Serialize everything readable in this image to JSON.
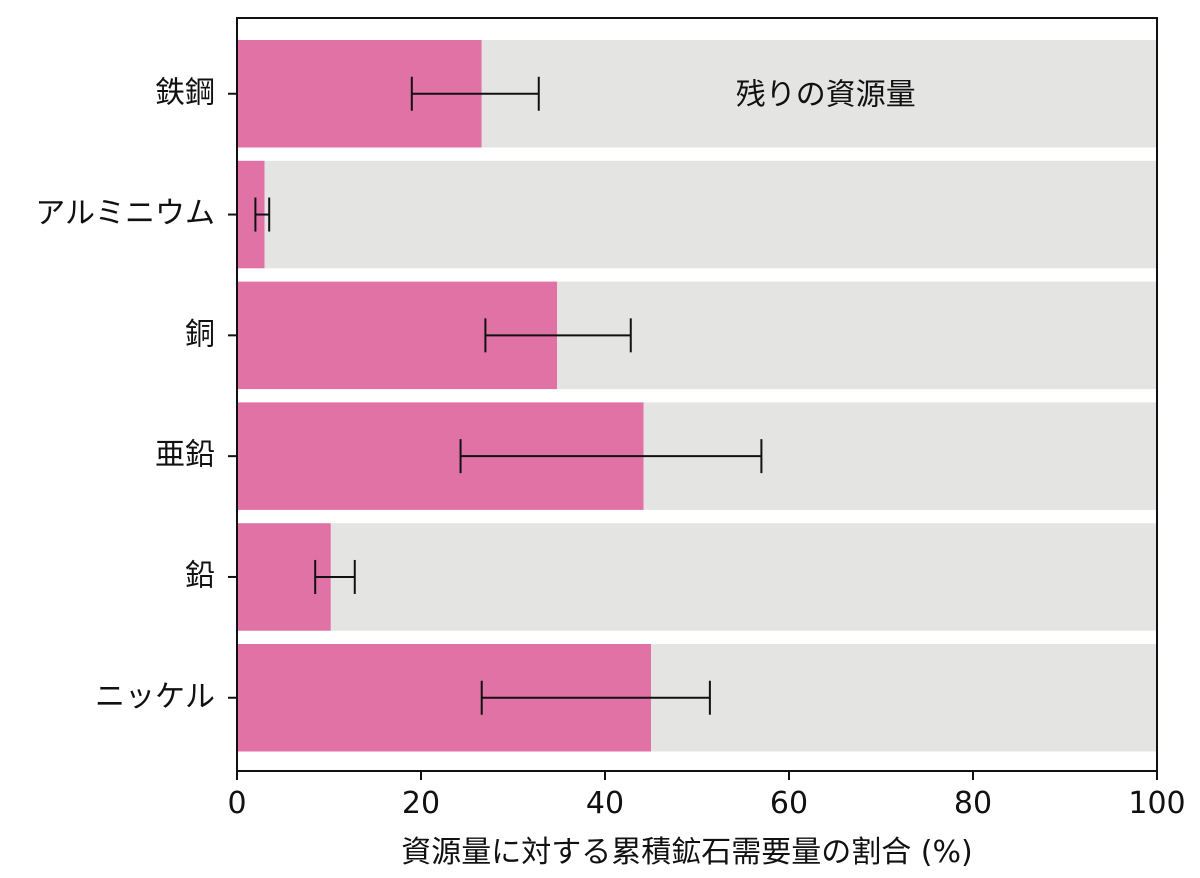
{
  "chart_data": {
    "type": "bar",
    "orientation": "horizontal",
    "stacked": true,
    "categories": [
      "鉄鋼",
      "アルミニウム",
      "銅",
      "亜鉛",
      "鉛",
      "ニッケル"
    ],
    "series": [
      {
        "values": [
          26.6,
          3.0,
          34.8,
          44.2,
          10.2,
          45.0
        ],
        "error_low": [
          19.0,
          2.0,
          27.0,
          24.3,
          8.5,
          26.6
        ],
        "error_high": [
          32.8,
          3.5,
          42.8,
          57.0,
          12.8,
          51.4
        ],
        "color": "#e072a6"
      },
      {
        "values": [
          73.4,
          97.0,
          65.2,
          55.8,
          89.8,
          55.0
        ],
        "color": "#e4e4e3"
      }
    ],
    "annotation": {
      "text": "残りの資源量",
      "category": "鉄鋼",
      "x": 64
    },
    "xlabel": "資源量に対する累積鉱石需要量の割合 (%)",
    "ylabel": "",
    "title": "",
    "xlim": [
      0,
      100
    ],
    "xticks": [
      0,
      20,
      40,
      60,
      80,
      100
    ],
    "grid": false,
    "legend": "none"
  }
}
